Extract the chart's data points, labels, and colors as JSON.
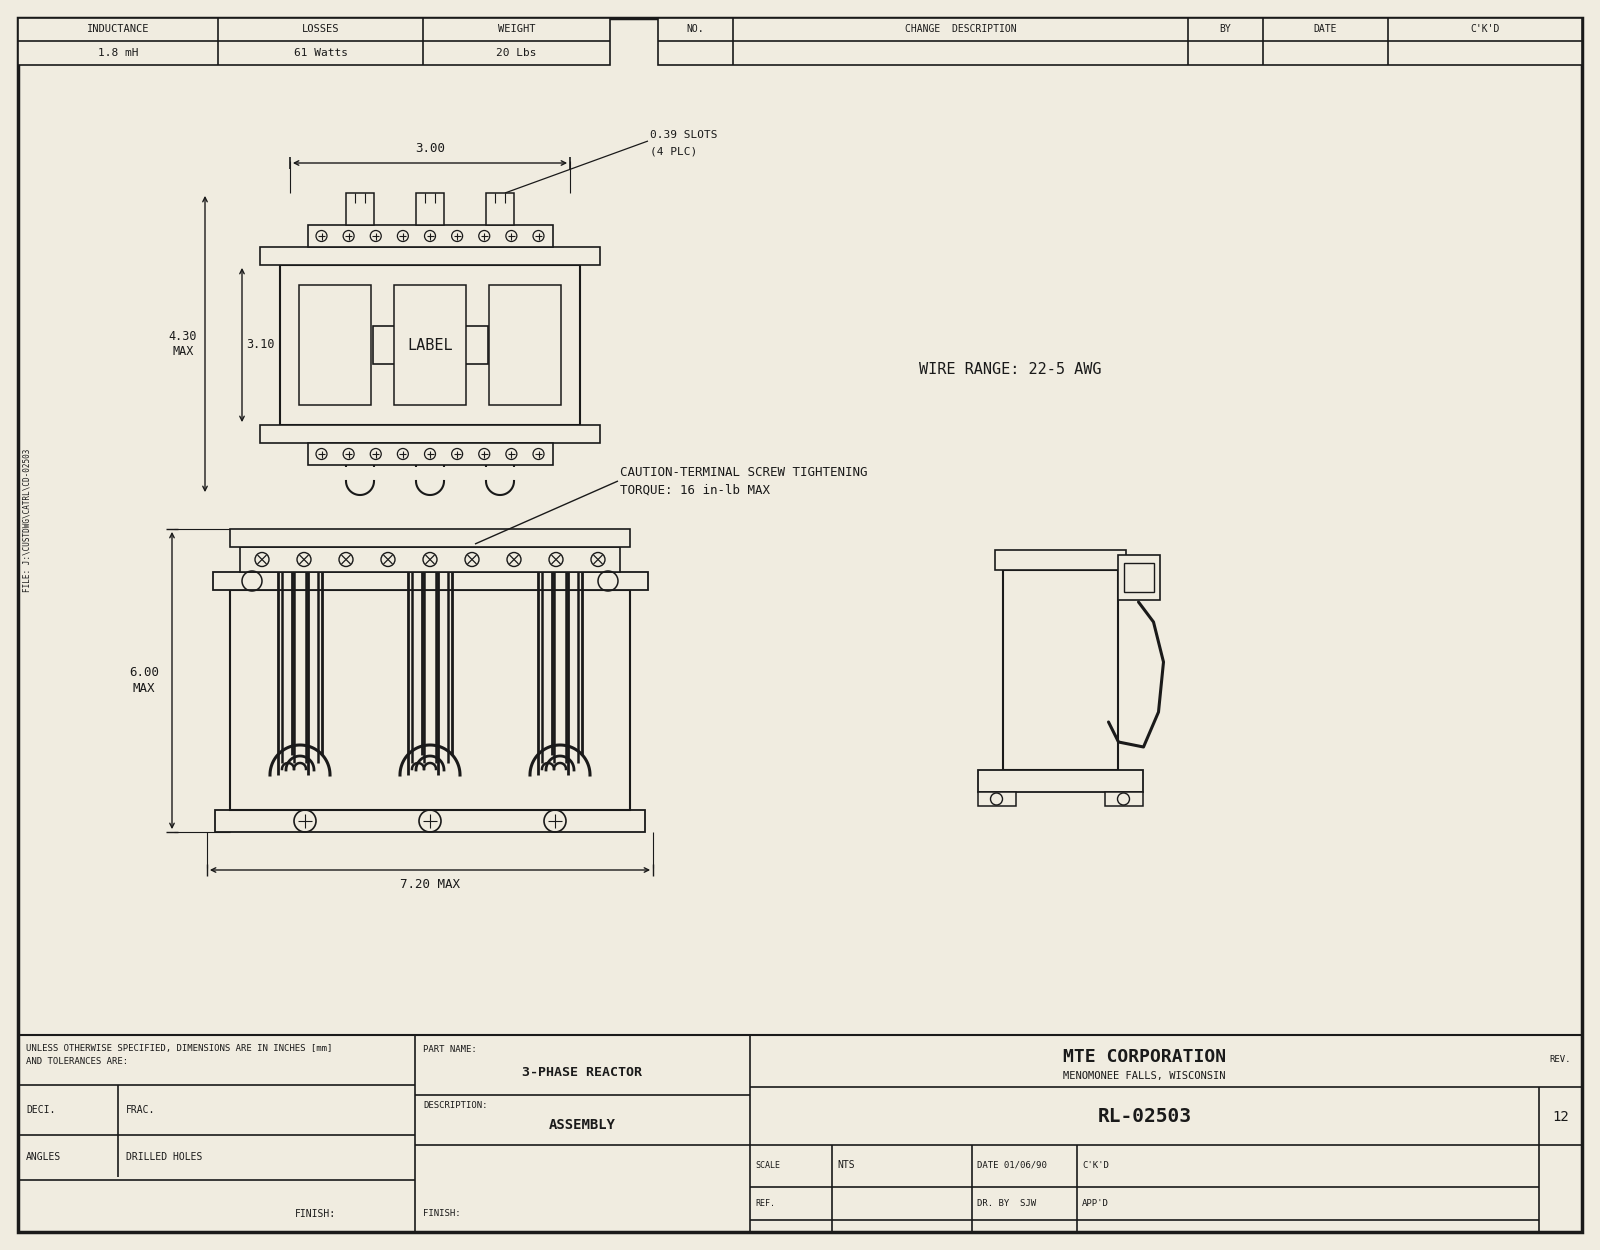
{
  "bg_color": "#f0ece0",
  "line_color": "#1a1a1a",
  "title_company": "MTE CORPORATION",
  "title_location": "MENOMONEE FALLS, WISCONSIN",
  "part_name": "3-PHASE REACTOR",
  "description": "ASSEMBLY",
  "part_number": "RL-02503",
  "inductance": "1.8 mH",
  "losses": "61 Watts",
  "weight": "20 Lbs",
  "wire_range": "WIRE RANGE: 22-5 AWG",
  "caution_line1": "CAUTION-TERMINAL SCREW TIGHTENING",
  "caution_line2": "TORQUE: 16 in-lb MAX",
  "dim_300": "3.00",
  "dim_430_max": "4.30\nMAX",
  "dim_310": "3.10",
  "dim_039": "0.39 SLOTS",
  "dim_039b": "(4 PLC)",
  "dim_600_max": "6.00\nMAX",
  "dim_720_max": "7.20 MAX",
  "label_text": "LABEL",
  "unless_text": "UNLESS OTHERWISE SPECIFIED, DIMENSIONS ARE IN INCHES [mm]",
  "unless_text2": "AND TOLERANCES ARE:",
  "deci_text": "DECI.",
  "frac_text": "FRAC.",
  "angles_text": "ANGLES",
  "drilled_text": "DRILLED HOLES",
  "finish_text": "FINISH:",
  "part_name_label": "PART NAME:",
  "description_label": "DESCRIPTION:",
  "no_label": "NO.",
  "change_desc_label": "CHANGE  DESCRIPTION",
  "by_label": "BY",
  "date_label": "DATE",
  "ckd_label": "C'K'D",
  "file_text": "FILE: J:\\CUSTDWG\\CATRL\\CD-02503"
}
